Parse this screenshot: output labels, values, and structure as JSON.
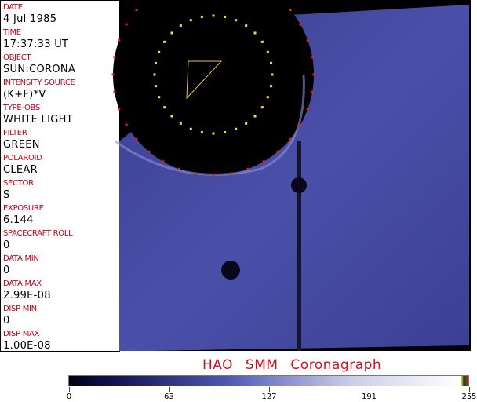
{
  "fields": [
    {
      "label": "DATE",
      "value": "4 Jul 1985"
    },
    {
      "label": "TIME",
      "value": "17:37:33 UT"
    },
    {
      "label": "OBJECT",
      "value": "SUN:CORONA"
    },
    {
      "label": "INTENSITY SOURCE",
      "value": "(K+F)*V"
    },
    {
      "label": "TYPE-OBS",
      "value": "WHITE LIGHT"
    },
    {
      "label": "FILTER",
      "value": "GREEN"
    },
    {
      "label": "POLAROID",
      "value": "CLEAR"
    },
    {
      "label": "SECTOR",
      "value": "S"
    },
    {
      "label": "EXPOSURE",
      "value": "6.144"
    },
    {
      "label": "SPACECRAFT ROLL",
      "value": "0"
    },
    {
      "label": "DATA MIN",
      "value": "0"
    },
    {
      "label": "DATA MAX",
      "value": "2.99E-08"
    },
    {
      "label": "DISP MIN",
      "value": "0"
    },
    {
      "label": "DISP MAX",
      "value": "1.00E-08"
    }
  ],
  "title": "HAO SMM Coronagraph",
  "colorbar": {
    "ticks": [
      "0",
      "63",
      "127",
      "191",
      "255"
    ],
    "colors": {
      "low": "#000018",
      "mid": "#5058b8",
      "high": "#ffffff",
      "label": "#d01020"
    }
  }
}
